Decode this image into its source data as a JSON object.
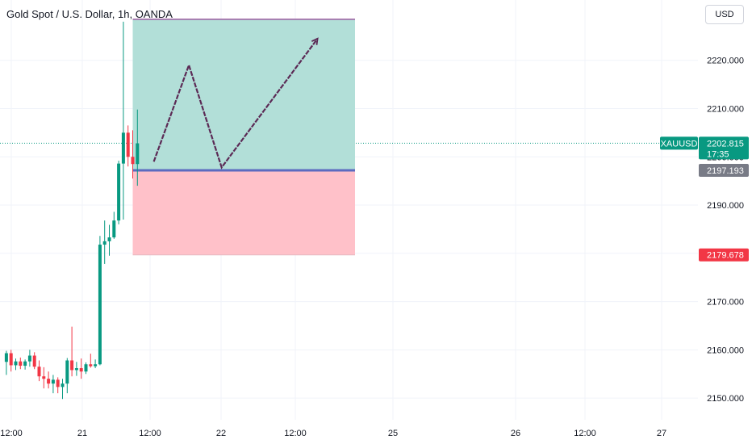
{
  "header": {
    "title": "Gold Spot / U.S. Dollar, 1h, OANDA",
    "currency": "USD"
  },
  "colors": {
    "up": "#089981",
    "down": "#f23645",
    "profit_zone": "#b2dfd8",
    "loss_zone": "#ffc1c9",
    "entry_line": "#5c6bc0",
    "drawing": "#5b2a55",
    "grid": "#f0f3fa",
    "axis_text": "#131722",
    "tag_gray": "#787b86"
  },
  "chart_data": {
    "type": "candlestick",
    "symbol": "XAUUSD",
    "y_axis": {
      "ticks": [
        2150,
        2160,
        2170,
        2180,
        2190,
        2200,
        2210,
        2220
      ],
      "tick_labels": [
        "2150.000",
        "2160.000",
        "2170.000",
        "2180.000",
        "2190.000",
        "2200.000",
        "2210.000",
        "2220.000"
      ],
      "range": [
        2145.5,
        2232.5
      ]
    },
    "x_axis": {
      "labels": [
        "12:00",
        "21",
        "12:00",
        "22",
        "12:00",
        "25",
        "26",
        "12:00",
        "27"
      ]
    },
    "candles": [
      {
        "o": 2157.5,
        "h": 2159.8,
        "l": 2154.8,
        "c": 2159.3
      },
      {
        "o": 2159.3,
        "h": 2160.0,
        "l": 2155.5,
        "c": 2156.8
      },
      {
        "o": 2156.8,
        "h": 2158.2,
        "l": 2155.8,
        "c": 2157.6
      },
      {
        "o": 2157.6,
        "h": 2158.4,
        "l": 2156.0,
        "c": 2156.7
      },
      {
        "o": 2156.7,
        "h": 2158.0,
        "l": 2155.9,
        "c": 2157.6
      },
      {
        "o": 2157.6,
        "h": 2160.0,
        "l": 2156.5,
        "c": 2158.8
      },
      {
        "o": 2158.8,
        "h": 2159.5,
        "l": 2156.0,
        "c": 2156.5
      },
      {
        "o": 2156.5,
        "h": 2157.8,
        "l": 2153.5,
        "c": 2154.5
      },
      {
        "o": 2154.5,
        "h": 2156.4,
        "l": 2152.0,
        "c": 2154.0
      },
      {
        "o": 2154.0,
        "h": 2155.5,
        "l": 2152.0,
        "c": 2153.0
      },
      {
        "o": 2153.0,
        "h": 2154.8,
        "l": 2151.0,
        "c": 2153.8
      },
      {
        "o": 2153.8,
        "h": 2154.3,
        "l": 2151.0,
        "c": 2152.3
      },
      {
        "o": 2152.3,
        "h": 2154.0,
        "l": 2149.8,
        "c": 2153.0
      },
      {
        "o": 2153.0,
        "h": 2158.3,
        "l": 2151.0,
        "c": 2157.8
      },
      {
        "o": 2157.8,
        "h": 2164.8,
        "l": 2154.5,
        "c": 2155.8
      },
      {
        "o": 2155.8,
        "h": 2157.5,
        "l": 2154.6,
        "c": 2156.2
      },
      {
        "o": 2156.2,
        "h": 2158.2,
        "l": 2154.0,
        "c": 2155.5
      },
      {
        "o": 2155.5,
        "h": 2157.4,
        "l": 2155.0,
        "c": 2157.0
      },
      {
        "o": 2157.0,
        "h": 2159.2,
        "l": 2156.3,
        "c": 2156.6
      },
      {
        "o": 2156.6,
        "h": 2158.0,
        "l": 2156.2,
        "c": 2157.0
      },
      {
        "o": 2157.0,
        "h": 2183.6,
        "l": 2156.8,
        "c": 2181.8
      },
      {
        "o": 2181.8,
        "h": 2186.8,
        "l": 2177.8,
        "c": 2182.5
      },
      {
        "o": 2182.5,
        "h": 2185.9,
        "l": 2179.5,
        "c": 2183.3
      },
      {
        "o": 2183.3,
        "h": 2188.6,
        "l": 2183.0,
        "c": 2186.8
      },
      {
        "o": 2186.8,
        "h": 2199.2,
        "l": 2186.0,
        "c": 2198.6
      },
      {
        "o": 2198.6,
        "h": 2228.0,
        "l": 2187.0,
        "c": 2205.0
      },
      {
        "o": 2205.0,
        "h": 2206.5,
        "l": 2198.0,
        "c": 2200.0
      },
      {
        "o": 2200.0,
        "h": 2205.5,
        "l": 2195.5,
        "c": 2198.5
      },
      {
        "o": 2198.5,
        "h": 2209.8,
        "l": 2194.0,
        "c": 2202.8
      }
    ],
    "position": {
      "entry": 2197.193,
      "take_profit": 2228.5,
      "stop_loss": 2179.678,
      "start_bar": 27.5,
      "end_bar": 75
    },
    "drawing_path": [
      {
        "bar": 32,
        "price": 2199.0
      },
      {
        "bar": 39.5,
        "price": 2219.0
      },
      {
        "bar": 46.5,
        "price": 2197.8
      },
      {
        "bar": 67,
        "price": 2224.5
      }
    ],
    "labels": {
      "current": {
        "symbol": "XAUUSD",
        "price": "2202.815",
        "countdown": "17:35",
        "value": 2202.815
      },
      "entry": {
        "price": "2197.193",
        "value": 2197.193
      },
      "stop": {
        "price": "2179.678",
        "value": 2179.678
      }
    }
  }
}
